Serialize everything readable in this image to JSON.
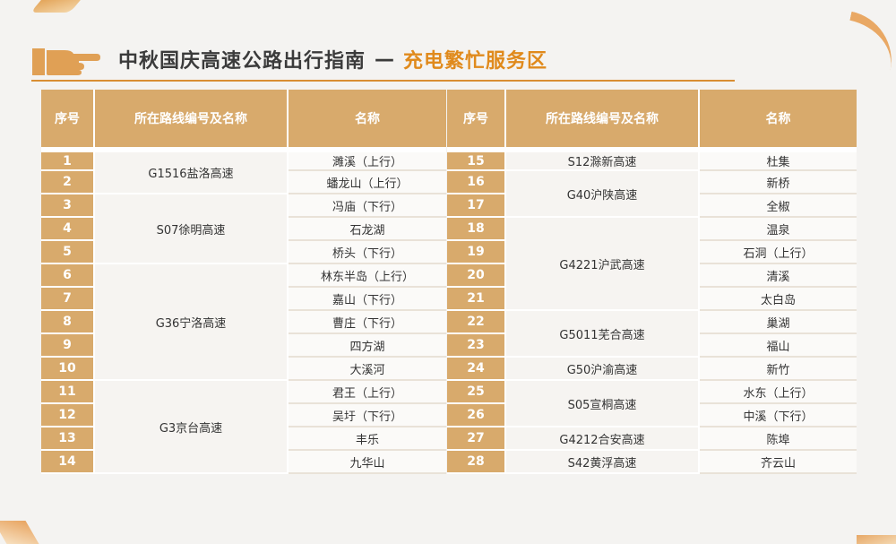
{
  "title": {
    "main": "中秋国庆高速公路出行指南",
    "dash": "—",
    "accent": "充电繁忙服务区"
  },
  "headers": {
    "seq": "序号",
    "route": "所在路线编号及名称",
    "name": "名称"
  },
  "left_groups": [
    {
      "route": "G1516盐洛高速",
      "rows": [
        {
          "n": "1",
          "name": "濉溪（上行）"
        },
        {
          "n": "2",
          "name": "蟠龙山（上行）"
        }
      ]
    },
    {
      "route": "S07徐明高速",
      "rows": [
        {
          "n": "3",
          "name": "冯庙（下行）"
        },
        {
          "n": "4",
          "name": "石龙湖"
        },
        {
          "n": "5",
          "name": "桥头（下行）"
        }
      ]
    },
    {
      "route": "G36宁洛高速",
      "rows": [
        {
          "n": "6",
          "name": "林东半岛（上行）"
        },
        {
          "n": "7",
          "name": "嘉山（下行）"
        },
        {
          "n": "8",
          "name": "曹庄（下行）"
        },
        {
          "n": "9",
          "name": "四方湖"
        },
        {
          "n": "10",
          "name": "大溪河"
        }
      ]
    },
    {
      "route": "G3京台高速",
      "rows": [
        {
          "n": "11",
          "name": "君王（上行）"
        },
        {
          "n": "12",
          "name": "吴圩（下行）"
        },
        {
          "n": "13",
          "name": "丰乐"
        },
        {
          "n": "14",
          "name": "九华山"
        }
      ]
    }
  ],
  "right_groups": [
    {
      "route": "S12滁新高速",
      "rows": [
        {
          "n": "15",
          "name": "杜集"
        }
      ]
    },
    {
      "route": "G40沪陕高速",
      "rows": [
        {
          "n": "16",
          "name": "新桥"
        },
        {
          "n": "17",
          "name": "全椒"
        }
      ]
    },
    {
      "route": "G4221沪武高速",
      "rows": [
        {
          "n": "18",
          "name": "温泉"
        },
        {
          "n": "19",
          "name": "石洞（上行）"
        },
        {
          "n": "20",
          "name": "清溪"
        },
        {
          "n": "21",
          "name": "太白岛"
        }
      ]
    },
    {
      "route": "G5011芜合高速",
      "rows": [
        {
          "n": "22",
          "name": "巢湖"
        },
        {
          "n": "23",
          "name": "福山"
        }
      ]
    },
    {
      "route": "G50沪渝高速",
      "rows": [
        {
          "n": "24",
          "name": "新竹"
        }
      ]
    },
    {
      "route": "S05宣桐高速",
      "rows": [
        {
          "n": "25",
          "name": "水东（上行）"
        },
        {
          "n": "26",
          "name": "中溪（下行）"
        }
      ]
    },
    {
      "route": "G4212合安高速",
      "rows": [
        {
          "n": "27",
          "name": "陈埠"
        }
      ]
    },
    {
      "route": "S42黄浮高速",
      "rows": [
        {
          "n": "28",
          "name": "齐云山"
        }
      ]
    }
  ]
}
